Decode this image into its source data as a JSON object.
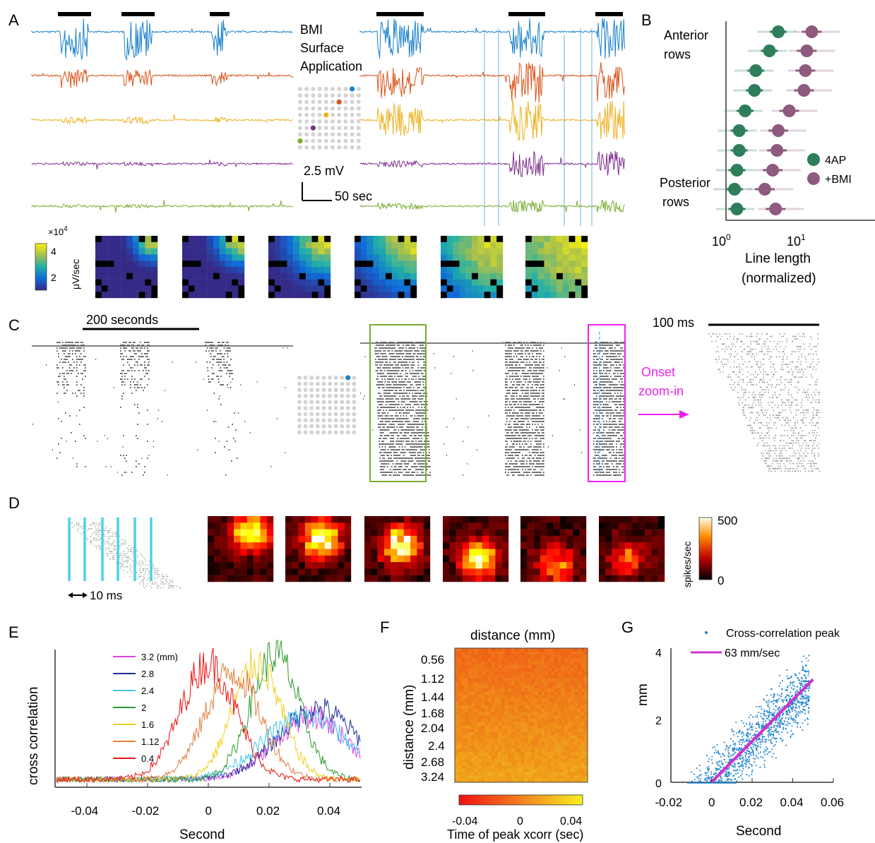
{
  "panels": {
    "A": {
      "letter": "A",
      "label_lines": [
        "BMI",
        "Surface",
        "Application"
      ],
      "scale_voltage": "2.5 mV",
      "scale_time": "50 sec",
      "colorbar_exponent": "×10",
      "colorbar_exp_power": "4",
      "colorbar_unit": "μV/sec",
      "colorbar_ticks": [
        "4",
        "2"
      ],
      "trace_colors": [
        "#1a80cc",
        "#d95319",
        "#edb120",
        "#7e2f8e",
        "#77ac30"
      ]
    },
    "B": {
      "letter": "B",
      "anterior_lines": [
        "Anterior",
        "rows"
      ],
      "posterior_lines": [
        "Posterior",
        "rows"
      ],
      "legend": [
        {
          "label": "4AP",
          "color": "#2e7d5b"
        },
        {
          "label": "+BMI",
          "color": "#8e5a7e"
        }
      ],
      "x_tick_base": "10",
      "x_ticks_exp": [
        "0",
        "1"
      ],
      "xlabel_lines": [
        "Line length",
        "(normalized)"
      ]
    },
    "C": {
      "letter": "C",
      "scale_time": "200 seconds",
      "zoom_scale": "100 ms",
      "onset_lines": [
        "Onset",
        "zoom-in"
      ]
    },
    "D": {
      "letter": "D",
      "scale": "10 ms",
      "colorbar_max": "500",
      "colorbar_min": "0",
      "colorbar_unit": "spikes/sec"
    },
    "E": {
      "letter": "E",
      "ylabel": "cross correlation",
      "xlabel": "Second",
      "xticks": [
        "-0.04",
        "-0.02",
        "0",
        "0.02",
        "0.04"
      ],
      "legend": [
        {
          "label": "3.2 (mm)",
          "color": "#e040e0"
        },
        {
          "label": "2.8",
          "color": "#1f2f9a"
        },
        {
          "label": "2.4",
          "color": "#3fc7f0"
        },
        {
          "label": "2",
          "color": "#2a9a2a"
        },
        {
          "label": "1.6",
          "color": "#f0d020"
        },
        {
          "label": "1.12",
          "color": "#e08040"
        },
        {
          "label": "0.4",
          "color": "#ee1111"
        }
      ]
    },
    "F": {
      "letter": "F",
      "title": "distance (mm)",
      "ylabel": "distance (mm)",
      "yticks": [
        "0.56",
        "1.12",
        "1.44",
        "1.68",
        "2.04",
        "2.4",
        "2.68",
        "3.24"
      ],
      "colorbar_ticks": [
        "-0.04",
        "0",
        "0.04"
      ],
      "colorbar_label": "Time of peak xcorr (sec)"
    },
    "G": {
      "letter": "G",
      "legend_points": "Cross-correlation peak",
      "legend_line": "63 mm/sec",
      "ylabel": "mm",
      "xlabel": "Second",
      "yticks": [
        "4",
        "2",
        "0"
      ],
      "xticks": [
        "-0.02",
        "0",
        "0.02",
        "0.04",
        "0.06"
      ]
    }
  },
  "chart_data": [
    {
      "type": "scatter",
      "panel": "B",
      "xlabel": "Line length (normalized)",
      "xscale": "log",
      "xlim": [
        0.8,
        50
      ],
      "series": [
        {
          "name": "4AP",
          "x": [
            5.0,
            3.8,
            2.5,
            2.4,
            1.8,
            1.5,
            1.5,
            1.4,
            1.3,
            1.4
          ]
        },
        {
          "name": "+BMI",
          "x": [
            14,
            12,
            11.5,
            11,
            7,
            5,
            4.8,
            4.2,
            3.3,
            4.6
          ]
        }
      ]
    },
    {
      "type": "line",
      "panel": "E",
      "xlabel": "Second",
      "ylabel": "cross correlation",
      "xlim": [
        -0.05,
        0.05
      ],
      "series": [
        {
          "name": "0.4",
          "peak_x": 0.0
        },
        {
          "name": "1.12",
          "peak_x": 0.008
        },
        {
          "name": "1.6",
          "peak_x": 0.016
        },
        {
          "name": "2",
          "peak_x": 0.022
        },
        {
          "name": "2.4",
          "peak_x": 0.032
        },
        {
          "name": "2.8",
          "peak_x": 0.036
        },
        {
          "name": "3.2 (mm)",
          "peak_x": 0.034
        }
      ]
    },
    {
      "type": "heatmap",
      "panel": "F",
      "title": "distance (mm)",
      "ylabel": "distance (mm)",
      "colorbar_range": [
        -0.04,
        0.04
      ]
    },
    {
      "type": "scatter",
      "panel": "G",
      "xlabel": "Second",
      "ylabel": "mm",
      "xlim": [
        -0.02,
        0.06
      ],
      "ylim": [
        0,
        4
      ],
      "fit_line": {
        "name": "63 mm/sec",
        "slope": 63,
        "x": [
          0,
          0.05
        ],
        "y": [
          0,
          3.15
        ]
      }
    }
  ]
}
